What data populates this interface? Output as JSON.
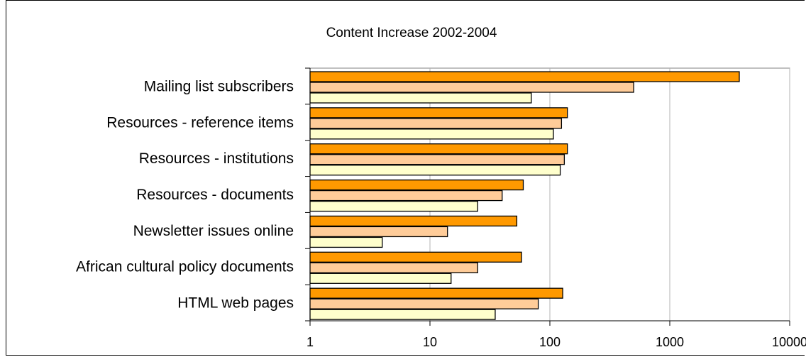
{
  "chart_data": {
    "type": "bar",
    "orientation": "horizontal",
    "title": "Content Increase 2002-2004",
    "xlabel": "",
    "ylabel": "",
    "x_scale": "log",
    "xlim": [
      1,
      10000
    ],
    "x_ticks": [
      1,
      10,
      100,
      1000,
      10000
    ],
    "x_tick_labels": [
      "1",
      "10",
      "100",
      "1000",
      "10000"
    ],
    "grid": "vertical major gridlines",
    "legend": "none",
    "categories": [
      "Mailing list subscribers",
      "Resources - reference items",
      "Resources - institutions",
      "Resources - documents",
      "Newsletter issues online",
      "African cultural policy documents",
      "HTML web pages"
    ],
    "series": [
      {
        "color": "#ff9900",
        "values": [
          3800,
          140,
          140,
          60,
          53,
          58,
          128
        ]
      },
      {
        "color": "#ffcc99",
        "values": [
          500,
          125,
          132,
          40,
          14,
          25,
          80
        ]
      },
      {
        "color": "#ffffcc",
        "values": [
          70,
          107,
          122,
          25,
          4,
          15,
          35
        ]
      }
    ]
  }
}
